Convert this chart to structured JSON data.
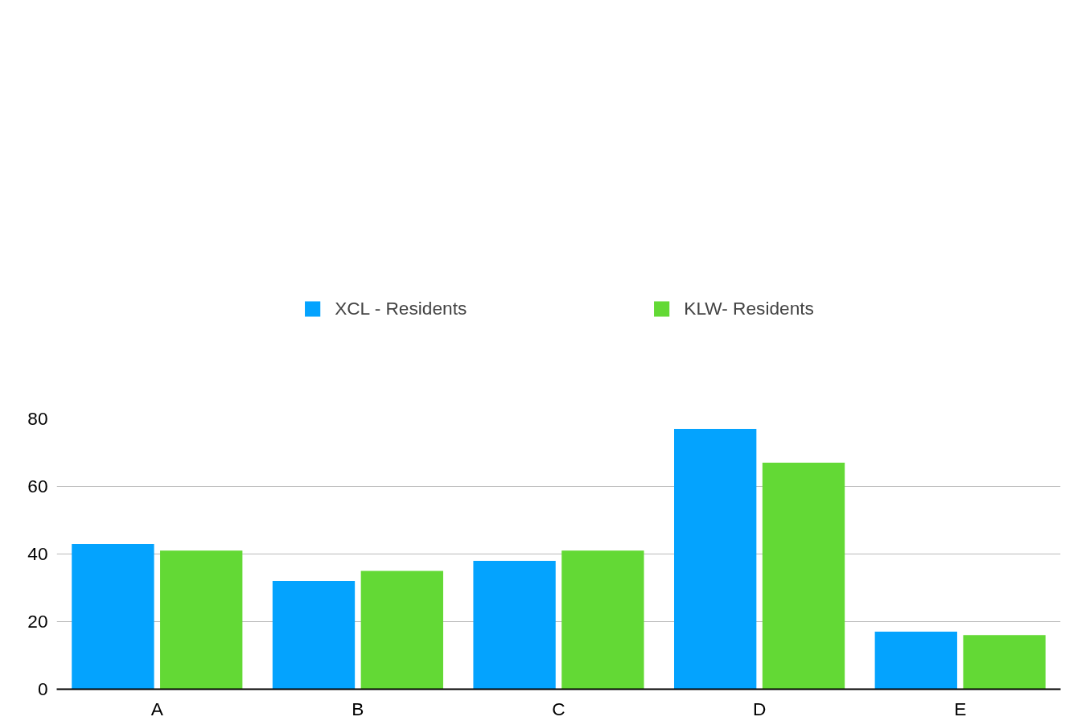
{
  "chart_data": {
    "type": "bar",
    "categories": [
      "A",
      "B",
      "C",
      "D",
      "E"
    ],
    "series": [
      {
        "name": "XCL - Residents",
        "color": "#04a3fe",
        "values": [
          43,
          32,
          38,
          77,
          17
        ]
      },
      {
        "name": "KLW- Residents",
        "color": "#63d935",
        "values": [
          41,
          35,
          41,
          67,
          16
        ]
      }
    ],
    "ylim": [
      0,
      80
    ],
    "yticks": [
      0,
      20,
      40,
      60,
      80
    ],
    "grid": "y",
    "legend": "top"
  }
}
